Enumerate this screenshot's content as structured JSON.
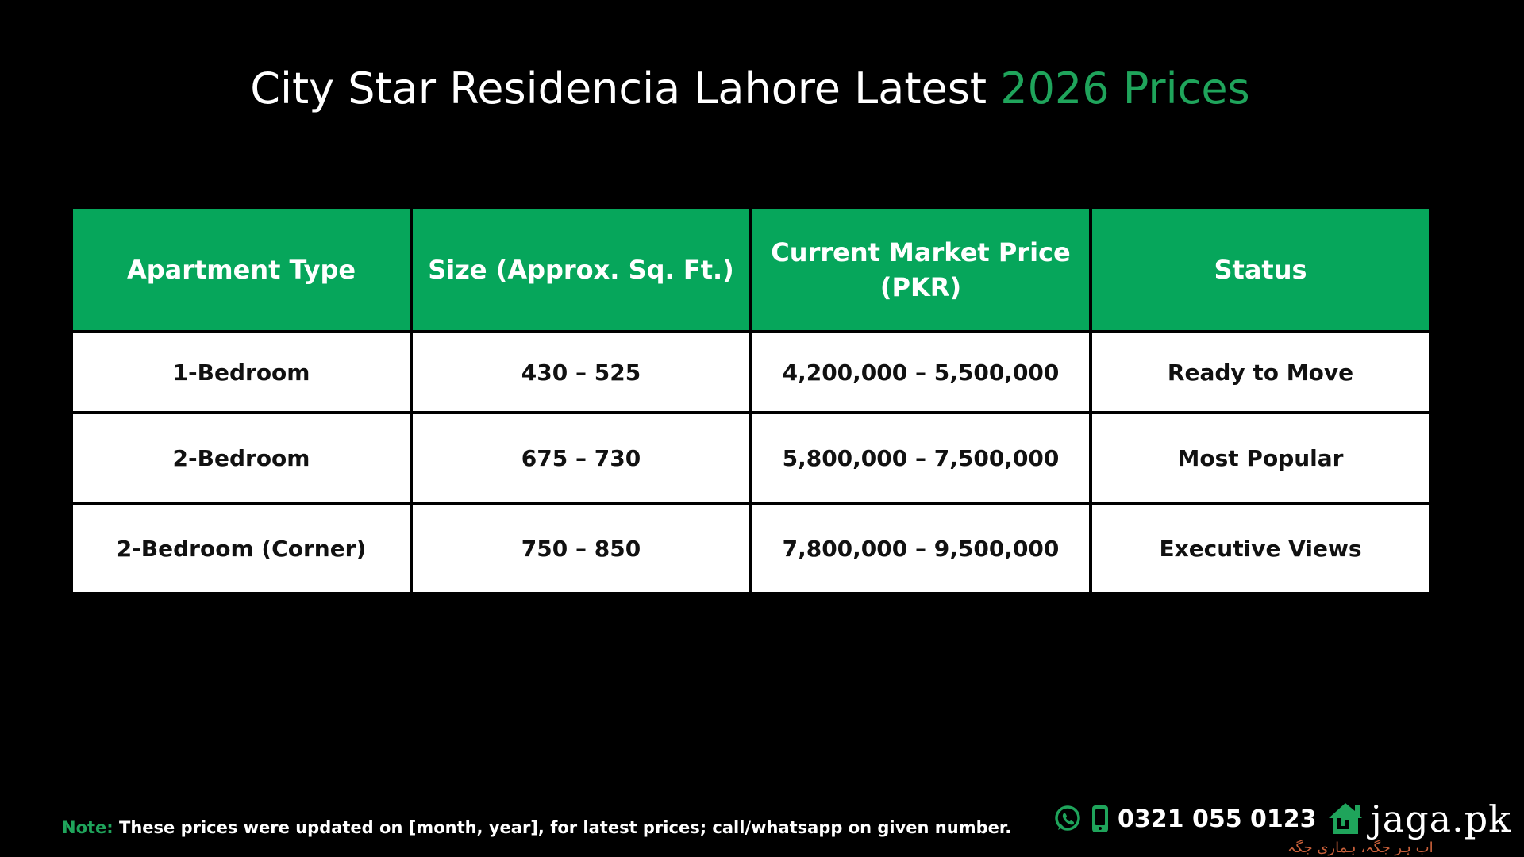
{
  "title": {
    "main": "City Star Residencia Lahore Latest ",
    "accent": "2026 Prices"
  },
  "table": {
    "headers": [
      "Apartment Type",
      "Size (Approx. Sq. Ft.)",
      "Current Market Price (PKR)",
      "Status"
    ],
    "rows": [
      [
        "1-Bedroom",
        "430 – 525",
        "4,200,000 – 5,500,000",
        "Ready to Move"
      ],
      [
        "2-Bedroom",
        "675 – 730",
        "5,800,000 – 7,500,000",
        "Most Popular"
      ],
      [
        "2-Bedroom (Corner)",
        "750 – 850",
        "7,800,000 – 9,500,000",
        "Executive Views"
      ]
    ]
  },
  "note": {
    "label": "Note:",
    "text": " These prices were updated on [month, year], for latest prices; call/whatsapp on given number."
  },
  "contact": {
    "phone": "0321 055 0123",
    "brand": "jaga.pk",
    "brand_tagline": "اب ہر جگہ، ہماری جگہ"
  },
  "icons": [
    "whatsapp-icon",
    "mobile-phone-icon",
    "house-logo-icon"
  ],
  "colors": {
    "background": "#000000",
    "accent_green": "#06a65b",
    "cell_white": "#ffffff",
    "tagline_orange": "#c9603a"
  }
}
